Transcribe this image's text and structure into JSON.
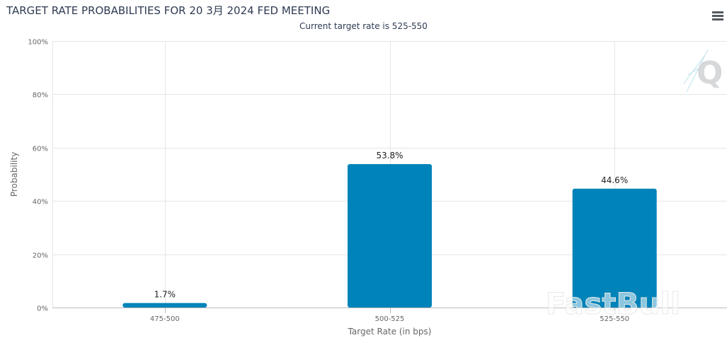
{
  "header": {
    "title": "TARGET RATE PROBABILITIES FOR 20 3月 2024 FED MEETING",
    "subtitle": "Current target rate is 525-550",
    "menu_icon": "hamburger-menu-icon"
  },
  "watermarks": {
    "corner_logo": "Q",
    "brand": "FastBull"
  },
  "colors": {
    "bar": "#0083b9",
    "grid": "#e6e6e6",
    "text": "#333333",
    "title": "#2f3b52"
  },
  "chart_data": {
    "type": "bar",
    "title": "TARGET RATE PROBABILITIES FOR 20 3月 2024 FED MEETING",
    "subtitle": "Current target rate is 525-550",
    "categories": [
      "475-500",
      "500-525",
      "525-550"
    ],
    "values": [
      1.7,
      53.8,
      44.6
    ],
    "data_labels": [
      "1.7%",
      "53.8%",
      "44.6%"
    ],
    "xlabel": "Target Rate (in bps)",
    "ylabel": "Probability",
    "ylim": [
      0,
      100
    ],
    "yticks": [
      0,
      20,
      40,
      60,
      80,
      100
    ],
    "ytick_labels": [
      "0%",
      "20%",
      "40%",
      "60%",
      "80%",
      "100%"
    ],
    "grid": true,
    "legend": "none"
  }
}
